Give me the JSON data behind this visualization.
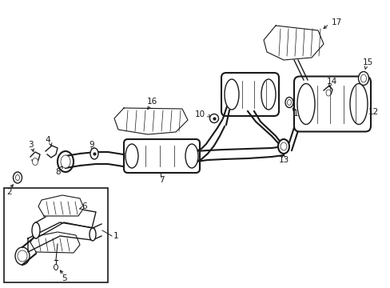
{
  "bg_color": "#ffffff",
  "line_color": "#1a1a1a",
  "text_color": "#1a1a1a",
  "label_fontsize": 7.5,
  "figsize": [
    4.89,
    3.6
  ],
  "dpi": 100,
  "xlim": [
    0,
    489
  ],
  "ylim": [
    0,
    360
  ]
}
